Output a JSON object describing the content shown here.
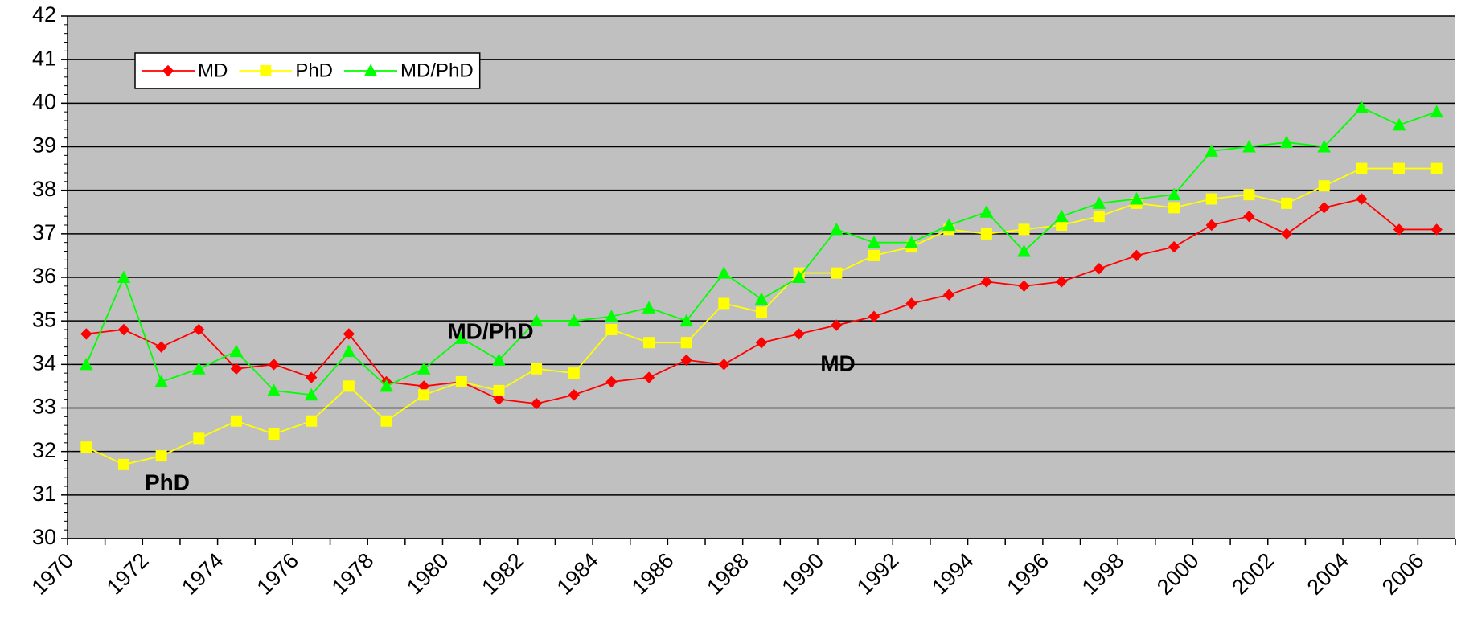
{
  "chart_data": {
    "type": "line",
    "categories": [
      "1970",
      null,
      "1972",
      null,
      "1974",
      null,
      "1976",
      null,
      "1978",
      null,
      "1980",
      null,
      "1982",
      null,
      "1984",
      null,
      "1986",
      null,
      "1988",
      null,
      "1990",
      null,
      "1992",
      null,
      "1994",
      null,
      "1996",
      null,
      "1998",
      null,
      "2000",
      null,
      "2002",
      null,
      "2004",
      null,
      "2006"
    ],
    "series": [
      {
        "name": "MD",
        "color": "#ff0000",
        "marker": "diamond",
        "values": [
          34.7,
          34.8,
          34.4,
          34.8,
          33.9,
          34.0,
          33.7,
          34.7,
          33.6,
          33.5,
          33.6,
          33.2,
          33.1,
          33.3,
          33.6,
          33.7,
          34.1,
          34.0,
          34.5,
          34.7,
          34.9,
          35.1,
          35.4,
          35.6,
          35.9,
          35.8,
          35.9,
          36.2,
          36.5,
          36.7,
          37.2,
          37.4,
          37.0,
          37.6,
          37.8,
          37.1,
          37.1
        ]
      },
      {
        "name": "PhD",
        "color": "#ffff00",
        "marker": "square",
        "values": [
          32.1,
          31.7,
          31.9,
          32.3,
          32.7,
          32.4,
          32.7,
          33.5,
          32.7,
          33.3,
          33.6,
          33.4,
          33.9,
          33.8,
          34.8,
          34.5,
          34.5,
          35.4,
          35.2,
          36.1,
          36.1,
          36.5,
          36.7,
          37.1,
          37.0,
          37.1,
          37.2,
          37.4,
          37.7,
          37.6,
          37.8,
          37.9,
          37.7,
          38.1,
          38.5,
          38.5,
          38.5
        ]
      },
      {
        "name": "MD/PhD",
        "color": "#00ff00",
        "marker": "triangle",
        "values": [
          34.0,
          36.0,
          33.6,
          33.9,
          34.3,
          33.4,
          33.3,
          34.3,
          33.5,
          33.9,
          34.6,
          34.1,
          35.0,
          35.0,
          35.1,
          35.3,
          35.0,
          36.1,
          35.5,
          36.0,
          37.1,
          36.8,
          36.8,
          37.2,
          37.5,
          36.6,
          37.4,
          37.7,
          37.8,
          37.9,
          38.9,
          39.0,
          39.1,
          39.0,
          39.9,
          39.5,
          39.8
        ]
      }
    ],
    "annotations": [
      "MD/PhD",
      "MD",
      "PhD"
    ],
    "ylim": [
      30,
      42
    ],
    "yticks": [
      30,
      31,
      32,
      33,
      34,
      35,
      36,
      37,
      38,
      39,
      40,
      41,
      42
    ],
    "grid": true,
    "legend": "top-left",
    "background": "#c0c0c0"
  }
}
